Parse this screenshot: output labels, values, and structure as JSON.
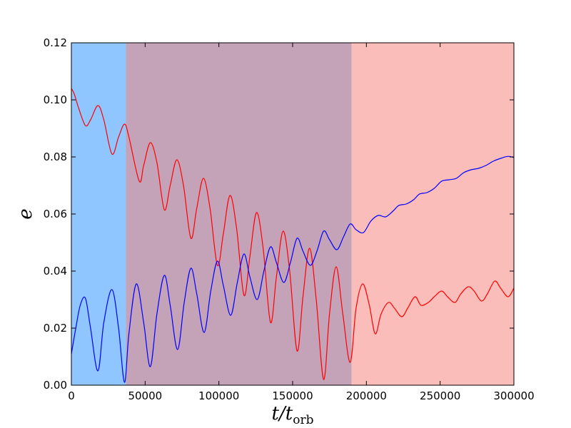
{
  "chart_data": {
    "type": "line",
    "title": "",
    "xlabel": "t/t",
    "xlabel_sub": "orb",
    "ylabel": "e",
    "xlim": [
      0,
      300000
    ],
    "ylim": [
      0,
      0.12
    ],
    "grid": false,
    "legend": "none",
    "x_ticks": [
      0,
      50000,
      100000,
      150000,
      200000,
      250000,
      300000
    ],
    "x_tick_labels": [
      "0",
      "50000",
      "100000",
      "150000",
      "200000",
      "250000",
      "300000"
    ],
    "y_ticks": [
      0,
      0.02,
      0.04,
      0.06,
      0.08,
      0.1,
      0.12
    ],
    "y_tick_labels": [
      "0.00",
      "0.02",
      "0.04",
      "0.06",
      "0.08",
      "0.10",
      "0.12"
    ],
    "regions": [
      {
        "x0": 0,
        "x1": 37000,
        "color": "#8fc6ff"
      },
      {
        "x0": 37000,
        "x1": 190000,
        "color": "#c4a3b8"
      },
      {
        "x0": 190000,
        "x1": 300000,
        "color": "#fabdb9"
      }
    ],
    "series": [
      {
        "color": "#ff0000",
        "x": [
          0,
          2000,
          5000,
          9500,
          13000,
          18000,
          22000,
          27500,
          32000,
          36000,
          39000,
          46000,
          49000,
          53500,
          58000,
          63000,
          67000,
          71500,
          76000,
          81000,
          85000,
          89500,
          94000,
          99000,
          103000,
          107500,
          112000,
          117000,
          121000,
          125500,
          130000,
          135000,
          139000,
          143500,
          148000,
          153000,
          157000,
          161500,
          166000,
          171000,
          175000,
          179500,
          184000,
          189000,
          193000,
          197500,
          202000,
          206000,
          210000,
          215000,
          219000,
          224000,
          228000,
          233000,
          237000,
          242000,
          246000,
          251000,
          255000,
          260000,
          264000,
          269000,
          273000,
          278000,
          282000,
          287000,
          291000,
          296000,
          300000
        ],
        "y": [
          0.104,
          0.102,
          0.097,
          0.091,
          0.093,
          0.098,
          0.093,
          0.081,
          0.087,
          0.0915,
          0.087,
          0.0715,
          0.077,
          0.085,
          0.078,
          0.0615,
          0.07,
          0.079,
          0.07,
          0.0515,
          0.062,
          0.0725,
          0.062,
          0.042,
          0.053,
          0.0665,
          0.055,
          0.0315,
          0.045,
          0.0605,
          0.048,
          0.022,
          0.038,
          0.054,
          0.04,
          0.012,
          0.031,
          0.048,
          0.03,
          0.002,
          0.025,
          0.0415,
          0.025,
          0.008,
          0.027,
          0.0355,
          0.028,
          0.018,
          0.025,
          0.029,
          0.027,
          0.024,
          0.027,
          0.031,
          0.028,
          0.029,
          0.031,
          0.033,
          0.031,
          0.029,
          0.032,
          0.0345,
          0.033,
          0.0295,
          0.032,
          0.0365,
          0.034,
          0.031,
          0.034
        ]
      },
      {
        "color": "#0000ff",
        "x": [
          0,
          3000,
          6000,
          9500,
          13000,
          18000,
          22000,
          27500,
          32000,
          36000,
          39000,
          44000,
          49000,
          53500,
          58000,
          63000,
          67000,
          72000,
          76500,
          81000,
          85000,
          90000,
          94500,
          99000,
          103000,
          108000,
          112500,
          117000,
          121000,
          126000,
          130500,
          135000,
          139000,
          144000,
          148500,
          153000,
          157000,
          162000,
          166500,
          171000,
          175000,
          180000,
          184500,
          189000,
          193000,
          198000,
          203000,
          208000,
          213000,
          218000,
          222000,
          227000,
          232000,
          236000,
          241000,
          246000,
          251000,
          256000,
          261000,
          266000,
          271000,
          276000,
          281000,
          286000,
          291000,
          296000,
          300000
        ],
        "y": [
          0.011,
          0.02,
          0.028,
          0.0305,
          0.02,
          0.005,
          0.022,
          0.0335,
          0.02,
          0.001,
          0.018,
          0.0355,
          0.022,
          0.0065,
          0.025,
          0.0385,
          0.028,
          0.0125,
          0.029,
          0.041,
          0.032,
          0.0185,
          0.033,
          0.0435,
          0.035,
          0.0245,
          0.036,
          0.046,
          0.038,
          0.03,
          0.04,
          0.0485,
          0.043,
          0.036,
          0.043,
          0.0515,
          0.047,
          0.042,
          0.047,
          0.054,
          0.051,
          0.0475,
          0.052,
          0.0565,
          0.0545,
          0.0535,
          0.0575,
          0.0595,
          0.059,
          0.061,
          0.063,
          0.0635,
          0.065,
          0.067,
          0.0675,
          0.069,
          0.0715,
          0.072,
          0.0725,
          0.0745,
          0.0755,
          0.076,
          0.077,
          0.0785,
          0.0795,
          0.0802,
          0.0798
        ]
      }
    ]
  }
}
